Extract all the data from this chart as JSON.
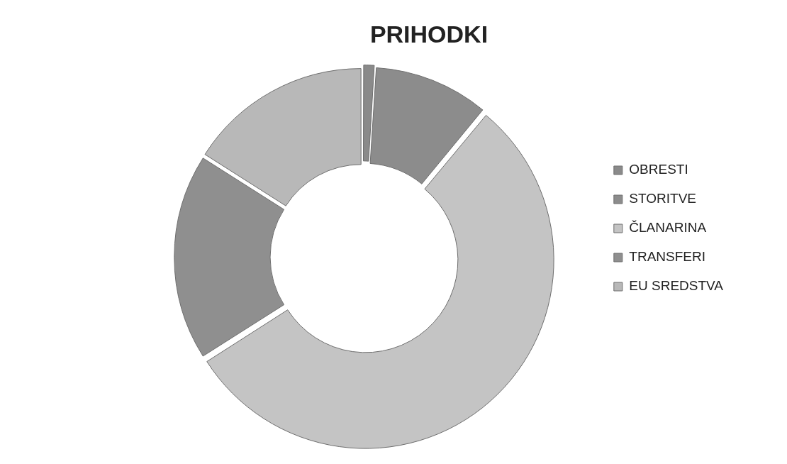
{
  "chart_data": {
    "type": "donut",
    "title": "PRIHODKI",
    "categories": [
      "OBRESTI",
      "STORITVE",
      "ČLANARINA",
      "TRANSFERI",
      "EU SREDSTVA"
    ],
    "values": [
      1,
      10,
      55,
      18,
      16
    ],
    "colors": [
      "#8a8a8a",
      "#8c8c8c",
      "#c4c4c4",
      "#8f8f8f",
      "#b8b8b8"
    ],
    "legend": "right"
  }
}
